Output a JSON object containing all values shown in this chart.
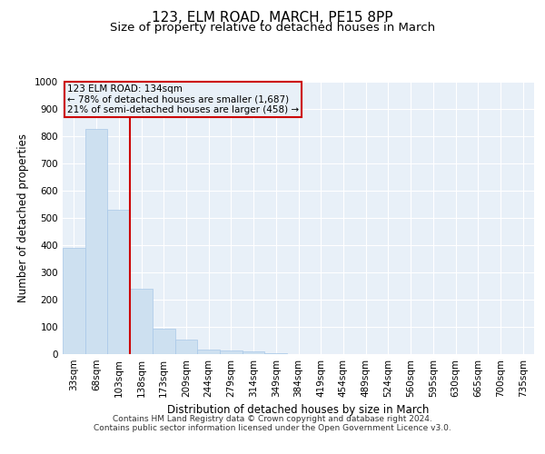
{
  "title": "123, ELM ROAD, MARCH, PE15 8PP",
  "subtitle": "Size of property relative to detached houses in March",
  "xlabel": "Distribution of detached houses by size in March",
  "ylabel": "Number of detached properties",
  "categories": [
    "33sqm",
    "68sqm",
    "103sqm",
    "138sqm",
    "173sqm",
    "209sqm",
    "244sqm",
    "279sqm",
    "314sqm",
    "349sqm",
    "384sqm",
    "419sqm",
    "454sqm",
    "489sqm",
    "524sqm",
    "560sqm",
    "595sqm",
    "630sqm",
    "665sqm",
    "700sqm",
    "735sqm"
  ],
  "values": [
    390,
    828,
    530,
    240,
    95,
    52,
    18,
    15,
    10,
    5,
    0,
    0,
    0,
    0,
    0,
    0,
    0,
    0,
    0,
    0,
    0
  ],
  "bar_color": "#cde0f0",
  "bar_edge_color": "#a8c8e8",
  "property_line_color": "#cc0000",
  "annotation_box_color": "#cc0000",
  "annotation_title": "123 ELM ROAD: 134sqm",
  "annotation_line1": "← 78% of detached houses are smaller (1,687)",
  "annotation_line2": "21% of semi-detached houses are larger (458) →",
  "footnote1": "Contains HM Land Registry data © Crown copyright and database right 2024.",
  "footnote2": "Contains public sector information licensed under the Open Government Licence v3.0.",
  "ylim": [
    0,
    1000
  ],
  "yticks": [
    0,
    100,
    200,
    300,
    400,
    500,
    600,
    700,
    800,
    900,
    1000
  ],
  "bg_color": "#ffffff",
  "plot_bg_color": "#e8f0f8",
  "grid_color": "#ffffff",
  "title_fontsize": 11,
  "subtitle_fontsize": 9.5,
  "axis_label_fontsize": 8.5,
  "tick_fontsize": 7.5,
  "footnote_fontsize": 6.5
}
